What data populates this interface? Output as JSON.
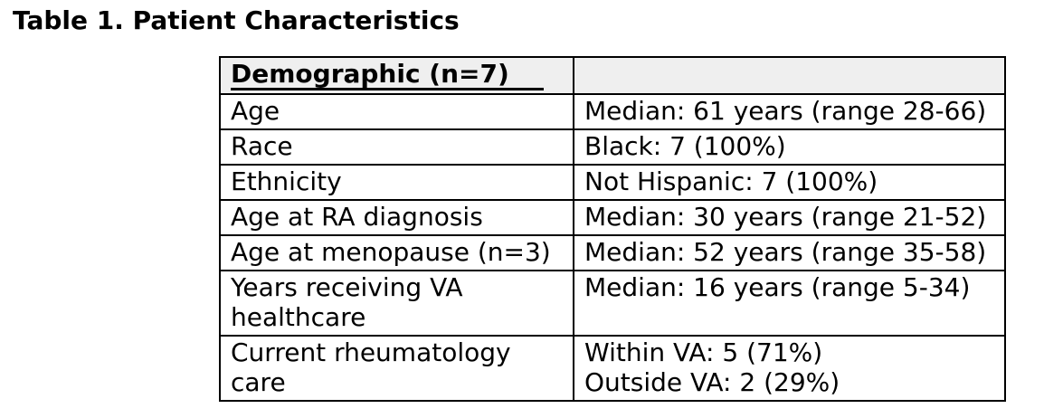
{
  "title": "Table 1. Patient Characteristics",
  "table": {
    "header": {
      "label": "Demographic (n=7)",
      "value": ""
    },
    "rows": [
      {
        "label_lines": [
          "Age"
        ],
        "value_lines": [
          "Median: 61 years (range 28-66)"
        ]
      },
      {
        "label_lines": [
          "Race"
        ],
        "value_lines": [
          "Black: 7 (100%)"
        ]
      },
      {
        "label_lines": [
          "Ethnicity"
        ],
        "value_lines": [
          "Not Hispanic: 7 (100%)"
        ]
      },
      {
        "label_lines": [
          "Age at RA diagnosis"
        ],
        "value_lines": [
          "Median: 30 years (range 21-52)"
        ]
      },
      {
        "label_lines": [
          "Age at menopause (n=3)"
        ],
        "value_lines": [
          "Median: 52 years (range 35-58)"
        ]
      },
      {
        "label_lines": [
          "Years receiving VA",
          "healthcare"
        ],
        "value_lines": [
          "Median: 16 years (range 5-34)"
        ]
      },
      {
        "label_lines": [
          "Current rheumatology",
          "care"
        ],
        "value_lines": [
          "Within VA: 5 (71%)",
          "Outside VA: 2 (29%)"
        ]
      }
    ]
  },
  "colors": {
    "page_bg": "#ffffff",
    "text": "#000000",
    "border": "#000000",
    "header_bg": "#efefef"
  }
}
